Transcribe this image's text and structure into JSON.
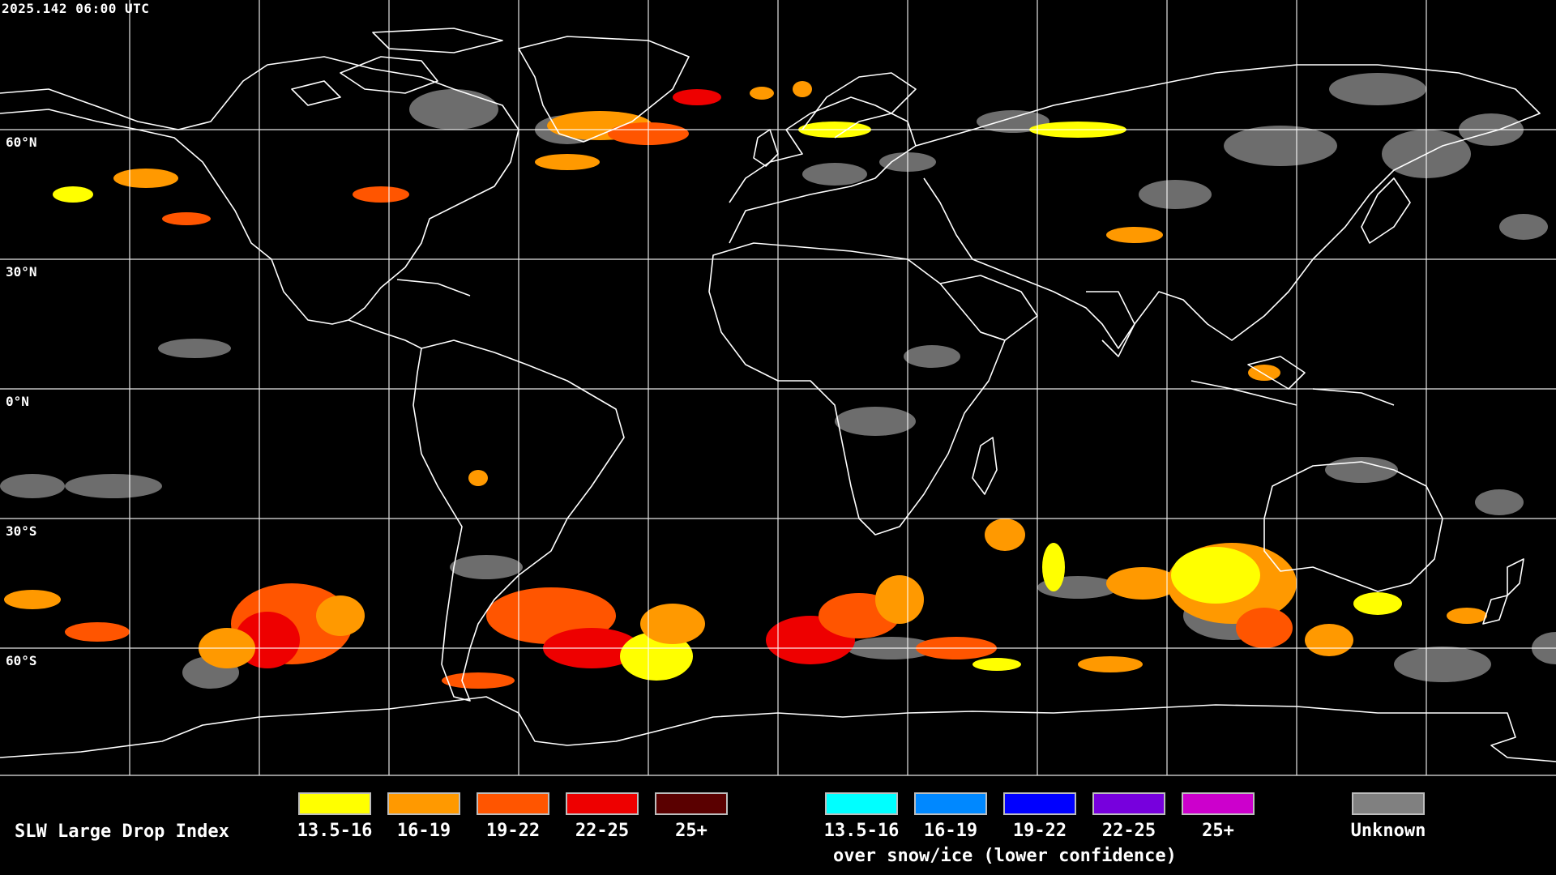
{
  "timestamp": "2025.142 06:00 UTC",
  "latitude_labels": [
    "60°N",
    "30°N",
    "0°N",
    "30°S",
    "60°S"
  ],
  "legend": {
    "title": "SLW Large Drop Index",
    "liquid_classes": [
      {
        "label": "13.5-16",
        "color": "#ffff00"
      },
      {
        "label": "16-19",
        "color": "#ff9900"
      },
      {
        "label": "19-22",
        "color": "#ff5500"
      },
      {
        "label": "22-25",
        "color": "#ee0000"
      },
      {
        "label": "25+",
        "color": "#5a0000"
      }
    ],
    "snow_classes": [
      {
        "label": "13.5-16",
        "color": "#00ffff"
      },
      {
        "label": "16-19",
        "color": "#0088ff"
      },
      {
        "label": "19-22",
        "color": "#0000ff"
      },
      {
        "label": "22-25",
        "color": "#7700dd"
      },
      {
        "label": "25+",
        "color": "#cc00cc"
      }
    ],
    "snow_note": "over snow/ice (lower confidence)",
    "unknown": {
      "label": "Unknown",
      "color": "#808080"
    }
  }
}
